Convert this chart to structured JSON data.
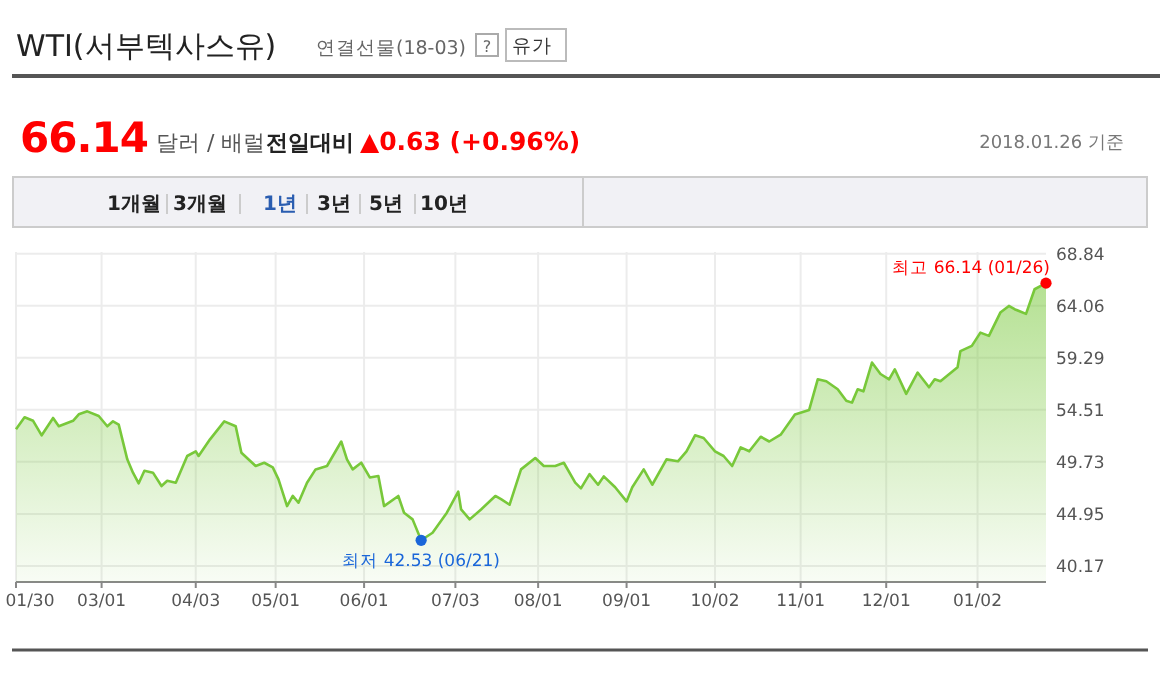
{
  "chart_data": {
    "type": "area",
    "title": "WTI(서부텍사스유)",
    "subtitle": "연결선물(18-03)",
    "annotations": [
      "66.14",
      "달러 / 배럴",
      "전일대비",
      "▲0.63 (+0.96%)",
      "2018.01.26 기준",
      "?",
      "유가",
      "1개월",
      "3개월",
      "1년",
      "3년",
      "5년",
      "10년",
      {
        "text": "최저 42.53 (06/21)",
        "x": "2017-06-21",
        "y": 42.53
      },
      {
        "text": "최고 66.14 (01/26)",
        "x": "2018-01-26",
        "y": 66.14
      }
    ],
    "x": [
      "2017-01-30",
      "2017-02-02",
      "2017-02-05",
      "2017-02-08",
      "2017-02-12",
      "2017-02-14",
      "2017-02-19",
      "2017-02-21",
      "2017-02-24",
      "2017-02-28",
      "2017-03-03",
      "2017-03-05",
      "2017-03-07",
      "2017-03-10",
      "2017-03-12",
      "2017-03-14",
      "2017-03-16",
      "2017-03-19",
      "2017-03-22",
      "2017-03-24",
      "2017-03-27",
      "2017-03-31",
      "2017-04-03",
      "2017-04-04",
      "2017-04-08",
      "2017-04-13",
      "2017-04-17",
      "2017-04-19",
      "2017-04-24",
      "2017-04-27",
      "2017-04-30",
      "2017-05-02",
      "2017-05-05",
      "2017-05-07",
      "2017-05-09",
      "2017-05-12",
      "2017-05-15",
      "2017-05-19",
      "2017-05-24",
      "2017-05-26",
      "2017-05-28",
      "2017-05-31",
      "2017-06-03",
      "2017-06-06",
      "2017-06-08",
      "2017-06-13",
      "2017-06-15",
      "2017-06-18",
      "2017-06-21",
      "2017-06-25",
      "2017-06-30",
      "2017-07-04",
      "2017-07-05",
      "2017-07-08",
      "2017-07-12",
      "2017-07-17",
      "2017-07-19",
      "2017-07-22",
      "2017-07-26",
      "2017-07-31",
      "2017-08-03",
      "2017-08-07",
      "2017-08-10",
      "2017-08-14",
      "2017-08-16",
      "2017-08-19",
      "2017-08-22",
      "2017-08-24",
      "2017-08-28",
      "2017-09-01",
      "2017-09-03",
      "2017-09-07",
      "2017-09-10",
      "2017-09-15",
      "2017-09-19",
      "2017-09-22",
      "2017-09-25",
      "2017-09-28",
      "2017-10-02",
      "2017-10-05",
      "2017-10-08",
      "2017-10-11",
      "2017-10-14",
      "2017-10-18",
      "2017-10-21",
      "2017-10-25",
      "2017-10-30",
      "2017-11-04",
      "2017-11-07",
      "2017-11-10",
      "2017-11-14",
      "2017-11-17",
      "2017-11-19",
      "2017-11-21",
      "2017-11-23",
      "2017-11-26",
      "2017-11-29",
      "2017-12-02",
      "2017-12-04",
      "2017-12-08",
      "2017-12-12",
      "2017-12-16",
      "2017-12-18",
      "2017-12-20",
      "2017-12-26",
      "2017-12-27",
      "2017-12-31",
      "2018-01-03",
      "2018-01-06",
      "2018-01-10",
      "2018-01-13",
      "2018-01-15",
      "2018-01-19",
      "2018-01-22",
      "2018-01-26"
    ],
    "series": [
      {
        "color": "#78c83a",
        "values": [
          52.72,
          53.82,
          53.5,
          52.17,
          53.76,
          53.0,
          53.5,
          54.1,
          54.37,
          53.94,
          53.0,
          53.45,
          53.15,
          49.96,
          48.74,
          47.76,
          48.92,
          48.74,
          47.51,
          48.0,
          47.82,
          50.27,
          50.7,
          50.27,
          51.8,
          53.45,
          53.0,
          50.57,
          49.35,
          49.65,
          49.23,
          48.12,
          45.67,
          46.6,
          45.98,
          47.82,
          49.04,
          49.35,
          51.6,
          49.96,
          49.04,
          49.65,
          48.3,
          48.43,
          45.67,
          46.6,
          45.06,
          44.45,
          42.53,
          43.22,
          45.06,
          47.0,
          45.36,
          44.45,
          45.36,
          46.6,
          46.3,
          45.8,
          49.04,
          50.08,
          49.35,
          49.35,
          49.65,
          47.82,
          47.3,
          48.6,
          47.63,
          48.4,
          47.4,
          46.1,
          47.4,
          49.04,
          47.63,
          49.96,
          49.78,
          50.7,
          52.17,
          51.92,
          50.7,
          50.27,
          49.35,
          51.06,
          50.7,
          52.04,
          51.6,
          52.23,
          54.07,
          54.5,
          57.31,
          57.13,
          56.4,
          55.35,
          55.17,
          56.4,
          56.21,
          58.85,
          57.8,
          57.31,
          58.23,
          55.97,
          57.93,
          56.58,
          57.31,
          57.13,
          58.42,
          59.9,
          60.38,
          61.6,
          61.3,
          63.44,
          64.05,
          63.75,
          63.32,
          65.58,
          66.14
        ]
      }
    ],
    "xlim": [
      "2017-01-30",
      "2018-01-26"
    ],
    "xticks": [
      {
        "value": "2017-01-30",
        "label": "01/30"
      },
      {
        "value": "2017-03-01",
        "label": "03/01"
      },
      {
        "value": "2017-04-03",
        "label": "04/03"
      },
      {
        "value": "2017-05-01",
        "label": "05/01"
      },
      {
        "value": "2017-06-01",
        "label": "06/01"
      },
      {
        "value": "2017-07-03",
        "label": "07/03"
      },
      {
        "value": "2017-08-01",
        "label": "08/01"
      },
      {
        "value": "2017-09-01",
        "label": "09/01"
      },
      {
        "value": "2017-10-02",
        "label": "10/02"
      },
      {
        "value": "2017-11-01",
        "label": "11/01"
      },
      {
        "value": "2017-12-01",
        "label": "12/01"
      },
      {
        "value": "2018-01-02",
        "label": "01/02"
      }
    ],
    "ylim": [
      38.7,
      69.0
    ],
    "yticks": [
      40.17,
      44.95,
      49.73,
      54.51,
      59.29,
      64.06,
      68.84
    ],
    "grid": true
  }
}
